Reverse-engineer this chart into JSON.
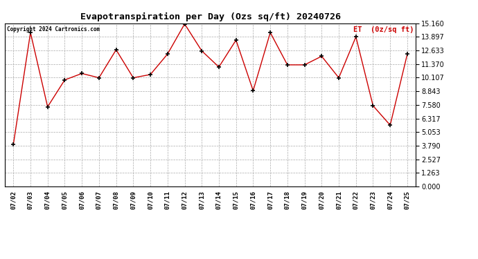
{
  "title": "Evapotranspiration per Day (Ozs sq/ft) 20240726",
  "copyright": "Copyright 2024 Cartronics.com",
  "legend_label": "ET  (0z/sq ft)",
  "dates": [
    "07/02",
    "07/03",
    "07/04",
    "07/05",
    "07/06",
    "07/07",
    "07/08",
    "07/09",
    "07/10",
    "07/11",
    "07/12",
    "07/13",
    "07/14",
    "07/15",
    "07/16",
    "07/17",
    "07/18",
    "07/19",
    "07/20",
    "07/21",
    "07/22",
    "07/23",
    "07/24",
    "07/25"
  ],
  "values": [
    3.9,
    14.3,
    7.4,
    9.9,
    10.5,
    10.1,
    12.7,
    10.1,
    10.4,
    12.3,
    15.1,
    12.6,
    11.1,
    13.6,
    8.9,
    14.3,
    11.3,
    11.3,
    12.1,
    10.1,
    13.9,
    7.5,
    5.7,
    12.3
  ],
  "line_color": "#cc0000",
  "marker_color": "#000000",
  "background_color": "#ffffff",
  "grid_color": "#aaaaaa",
  "title_color": "#000000",
  "legend_color": "#cc0000",
  "copyright_color": "#000000",
  "ylim": [
    0.0,
    15.16
  ],
  "yticks": [
    0.0,
    1.263,
    2.527,
    3.79,
    5.053,
    6.317,
    7.58,
    8.843,
    10.107,
    11.37,
    12.633,
    13.897,
    15.16
  ],
  "fig_width": 6.9,
  "fig_height": 3.75,
  "dpi": 100
}
